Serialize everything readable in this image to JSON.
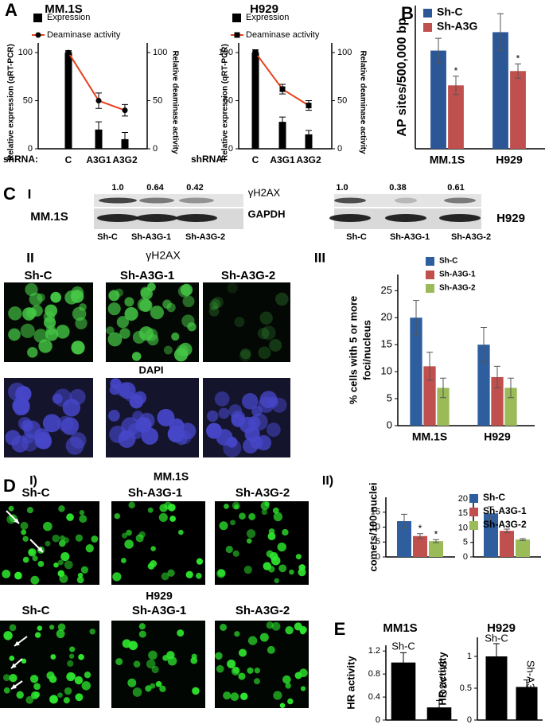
{
  "panel_labels": [
    "A",
    "B",
    "C",
    "I",
    "II",
    "III",
    "D",
    "I)",
    "II)",
    "E"
  ],
  "blots": {
    "proteins": [
      "γH2AX",
      "GAPDH"
    ],
    "mm1s": {
      "label": "MM.1S",
      "values": [
        "1.0",
        "0.64",
        "0.42"
      ],
      "lanes": [
        "Sh-C",
        "Sh-A3G-1",
        "Sh-A3G-2"
      ]
    },
    "h929": {
      "label": "H929",
      "values": [
        "1.0",
        "0.38",
        "0.61"
      ],
      "lanes": [
        "Sh-C",
        "Sh-A3G-1",
        "Sh-A3G-2"
      ]
    }
  },
  "foci_images": {
    "stain_top": "γH2AX",
    "stain_bottom": "DAPI",
    "conditions": [
      "Sh-C",
      "Sh-A3G-1",
      "Sh-A3G-2"
    ]
  },
  "comet_images": {
    "lines": [
      "MM.1S",
      "H929"
    ],
    "conditions_top": [
      "Sh-C",
      "Sh-A3G-1",
      "Sh-A3G-2"
    ],
    "conditions_bottom": [
      "Sh-C",
      "Sh-A3G-1",
      "Sh-A3G-2"
    ]
  },
  "chart_data": [
    {
      "type": "bar",
      "title": "MM.1S",
      "ylabel": "Relative expression (qRT-PCR)",
      "y2label": "Relative deaminase activity",
      "xlabel": "shRNA:",
      "categories": [
        "C",
        "A3G1",
        "A3G2"
      ],
      "series": [
        {
          "name": "Expression",
          "color": "#000000",
          "values": [
            100,
            20,
            10
          ],
          "errors": [
            1,
            8,
            7
          ]
        },
        {
          "name": "Deaminase activity",
          "color": "#e8401c",
          "axis": "y2",
          "marker": "circle",
          "values": [
            100,
            50,
            40
          ],
          "errors": [
            2,
            8,
            6
          ]
        }
      ],
      "ylim": [
        0,
        110
      ],
      "yticks": [
        0,
        50,
        100
      ],
      "y2lim": [
        0,
        110
      ],
      "y2ticks": [
        0,
        50,
        100
      ],
      "legend": "top-left"
    },
    {
      "type": "bar",
      "title": "H929",
      "ylabel": "Relative expression (qRT-PCR)",
      "y2label": "Relative deaminase activity",
      "xlabel": "shRNA:",
      "categories": [
        "C",
        "A3G1",
        "A3G2"
      ],
      "series": [
        {
          "name": "Expression",
          "color": "#000000",
          "values": [
            100,
            28,
            15
          ],
          "errors": [
            1,
            5,
            4
          ]
        },
        {
          "name": "Deaminase activity",
          "color": "#e8401c",
          "axis": "y2",
          "marker": "square",
          "values": [
            100,
            62,
            45
          ],
          "errors": [
            3,
            5,
            5
          ]
        }
      ],
      "ylim": [
        0,
        110
      ],
      "yticks": [
        0,
        50,
        100
      ],
      "y2lim": [
        0,
        110
      ],
      "y2ticks": [
        0,
        50,
        100
      ],
      "legend": "top-left"
    },
    {
      "type": "bar",
      "ylabel": "AP sites/500,000 bp",
      "categories": [
        "MM.1S",
        "H929"
      ],
      "series": [
        {
          "name": "Sh-C",
          "color": "#2b5797",
          "values": [
            4.8,
            5.7
          ],
          "errors": [
            0.6,
            0.9
          ]
        },
        {
          "name": "Sh-A3G",
          "color": "#c0504d",
          "values": [
            3.1,
            3.8
          ],
          "errors": [
            0.45,
            0.35
          ],
          "annotations": [
            "*",
            "*"
          ]
        }
      ],
      "ylim": [
        0,
        7
      ],
      "legend": "top-left"
    },
    {
      "type": "bar",
      "ylabel": [
        "% cells  with 5 or more",
        "foci/nucleus"
      ],
      "categories": [
        "MM.1S",
        "H929"
      ],
      "series": [
        {
          "name": "Sh-C",
          "color": "#2e5e9e",
          "values": [
            20,
            15
          ],
          "errors": [
            3.2,
            3.2
          ]
        },
        {
          "name": "Sh-A3G-1",
          "color": "#c0504d",
          "values": [
            11,
            9
          ],
          "errors": [
            2.6,
            2
          ]
        },
        {
          "name": "Sh-A3G-2",
          "color": "#9bbb59",
          "values": [
            7,
            7
          ],
          "errors": [
            1.8,
            1.8
          ]
        }
      ],
      "ylim": [
        0,
        28
      ],
      "yticks": [
        0,
        5,
        10,
        15,
        20,
        25
      ],
      "legend": "top-center"
    },
    {
      "type": "bar",
      "ylabel": "comets/100 nuclei",
      "categories": [
        null
      ],
      "series": [
        {
          "color": "#2e5e9e",
          "values": [
            12
          ],
          "errors": [
            2.3
          ]
        },
        {
          "color": "#c0504d",
          "values": [
            7
          ],
          "errors": [
            0.8
          ],
          "annotations": [
            "*"
          ]
        },
        {
          "color": "#9bbb59",
          "values": [
            5.3
          ],
          "errors": [
            0.5
          ],
          "annotations": [
            "*"
          ]
        }
      ],
      "ylim": [
        0,
        20
      ],
      "yticks": [
        0,
        5,
        10,
        15
      ]
    },
    {
      "type": "bar",
      "categories": [
        null
      ],
      "series": [
        {
          "name": "Sh-C",
          "color": "#2e5e9e",
          "values": [
            15
          ],
          "errors": [
            2.3
          ]
        },
        {
          "name": "Sh-A3G-1",
          "color": "#c0504d",
          "values": [
            9
          ],
          "errors": [
            0.6
          ]
        },
        {
          "name": "Sh-A3G-2",
          "color": "#9bbb59",
          "values": [
            6
          ],
          "errors": [
            0.3
          ]
        }
      ],
      "ylim": [
        0,
        20
      ],
      "yticks": [
        0,
        5,
        10,
        15,
        20
      ],
      "legend": "top-left"
    },
    {
      "type": "bar",
      "title": "MM1S",
      "ylabel": "HR activity",
      "categories": [
        "Sh-C",
        "Sh-A3G"
      ],
      "series": [
        {
          "color": "#000000",
          "values": [
            1.0,
            0.22
          ],
          "errors": [
            0.17,
            0.12
          ]
        }
      ],
      "ylim": [
        0,
        1.3
      ],
      "yticks": [
        0,
        0.4,
        0.8,
        1.2
      ]
    },
    {
      "type": "bar",
      "title": "H929",
      "ylabel": "HR activity",
      "categories": [
        "Sh-C",
        "Sh-A3G"
      ],
      "series": [
        {
          "color": "#000000",
          "values": [
            1.0,
            0.52
          ],
          "errors": [
            0.2,
            0.11
          ]
        }
      ],
      "ylim": [
        0,
        1.3
      ],
      "yticks": [
        0,
        0.5,
        1
      ]
    }
  ]
}
